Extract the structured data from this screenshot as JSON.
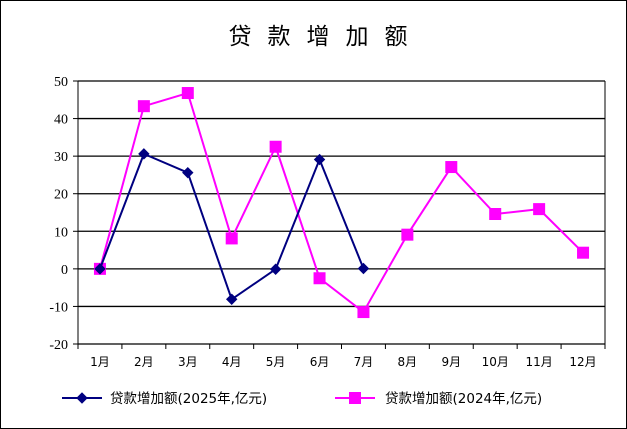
{
  "chart_data": {
    "type": "line",
    "title": "贷款增加额",
    "categories": [
      "1月",
      "2月",
      "3月",
      "4月",
      "5月",
      "6月",
      "7月",
      "8月",
      "9月",
      "10月",
      "11月",
      "12月"
    ],
    "ylim": [
      -20,
      50
    ],
    "yticks": [
      50,
      40,
      30,
      20,
      10,
      0,
      -10,
      -20
    ],
    "ytick_labels": [
      "50",
      "40",
      "30",
      "20",
      "10",
      "0",
      "-10",
      "-20"
    ],
    "grid": true,
    "legend_position": "bottom",
    "series": [
      {
        "name": "贷款增加额(2025年,亿元)",
        "color": "#000080",
        "marker": "diamond",
        "values": [
          0,
          30.6,
          25.6,
          -8.1,
          -0.1,
          29.1,
          0.1,
          null,
          null,
          null,
          null,
          null
        ]
      },
      {
        "name": "贷款增加额(2024年,亿元)",
        "color": "#ff00ff",
        "marker": "square",
        "values": [
          0,
          43.3,
          46.8,
          8.1,
          32.5,
          -2.5,
          -11.5,
          9.1,
          27.1,
          14.6,
          15.9,
          4.3
        ]
      }
    ]
  }
}
